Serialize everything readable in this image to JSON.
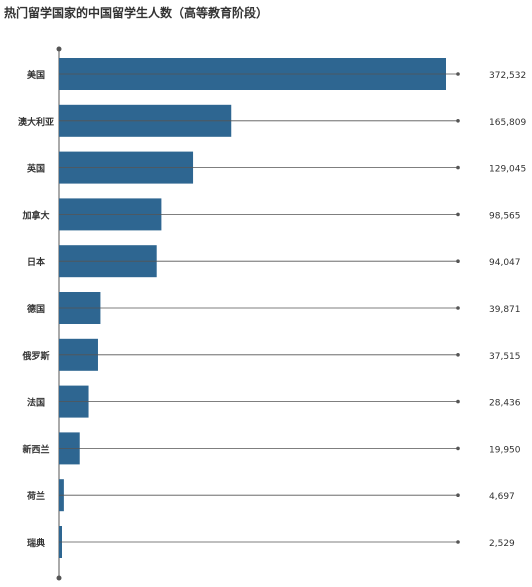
{
  "chart_data": {
    "type": "bar",
    "orientation": "horizontal",
    "title": "热门留学国家的中国留学生人数（高等教育阶段）",
    "categories": [
      "美国",
      "澳大利亚",
      "英国",
      "加拿大",
      "日本",
      "德国",
      "俄罗斯",
      "法国",
      "新西兰",
      "荷兰",
      "瑞典"
    ],
    "values": [
      372532,
      165809,
      129045,
      98565,
      94047,
      39871,
      37515,
      28436,
      19950,
      4697,
      2529
    ],
    "value_labels": [
      "372,532",
      "165,809",
      "129,045",
      "98,565",
      "94,047",
      "39,871",
      "37,515",
      "28,436",
      "19,950",
      "4,697",
      "2,529"
    ],
    "xlim": [
      0,
      380000
    ],
    "grid": false,
    "legend": "none",
    "colors": {
      "bar": "#2e6691",
      "axis": "#555555",
      "line": "#555555",
      "text": "#333333"
    }
  }
}
